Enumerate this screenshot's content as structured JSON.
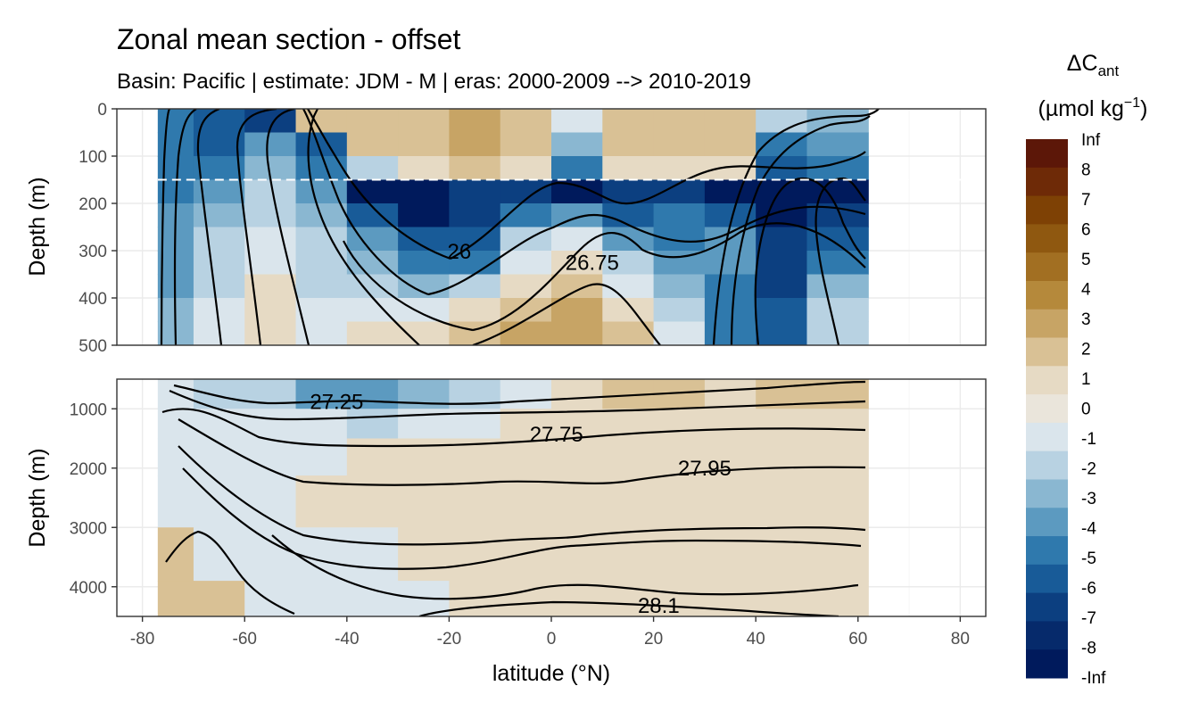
{
  "chart_data": {
    "type": "heatmap",
    "title": "Zonal mean section - offset",
    "subtitle": "Basin: Pacific | estimate: JDM - M | eras: 2000-2009 --> 2010-2019",
    "xlabel": "latitude (°N)",
    "ylabel_top": "Depth (m)",
    "ylabel_bottom": "Depth (m)",
    "xlim": [
      -85,
      85
    ],
    "x_ticks": [
      -80,
      -60,
      -40,
      -20,
      0,
      20,
      40,
      60,
      80
    ],
    "x_tick_labels": [
      "-80",
      "-60",
      "-40",
      "-20",
      "0",
      "20",
      "40",
      "60",
      "80"
    ],
    "panels": [
      {
        "name": "upper",
        "ylim": [
          0,
          500
        ],
        "y_ticks": [
          0,
          100,
          200,
          300,
          400,
          500
        ],
        "y_tick_labels": [
          "0",
          "100",
          "200",
          "300",
          "400",
          "500"
        ],
        "mixed_layer_line_depth": 150
      },
      {
        "name": "lower",
        "ylim": [
          500,
          4500
        ],
        "y_ticks": [
          1000,
          2000,
          3000,
          4000
        ],
        "y_tick_labels": [
          "1000",
          "2000",
          "3000",
          "4000"
        ]
      }
    ],
    "data_extent_lat": [
      -77,
      62
    ],
    "legend": {
      "title_main": "ΔC",
      "title_sub": "ant",
      "unit_prefix": "(µmol kg",
      "unit_exp": "−1",
      "unit_suffix": ")",
      "placement": "right",
      "labels": [
        "Inf",
        "8",
        "7",
        "6",
        "5",
        "4",
        "3",
        "2",
        "1",
        "0",
        "-1",
        "-2",
        "-3",
        "-4",
        "-5",
        "-6",
        "-7",
        "-8",
        "-Inf"
      ],
      "colors": [
        "#5c1708",
        "#6e2a07",
        "#7e4105",
        "#8f5810",
        "#a26f22",
        "#b5893b",
        "#c7a465",
        "#d9c195",
        "#e6dac4",
        "#eae5db",
        "#dae5ec",
        "#b8d2e2",
        "#8ab7d1",
        "#5c9ac0",
        "#2f79ad",
        "#185b98",
        "#0c3f80",
        "#062a6b",
        "#001a5c"
      ]
    },
    "isopycnal_labels": [
      {
        "text": "26",
        "lat": -18,
        "depth": 302
      },
      {
        "text": "26.75",
        "lat": 8,
        "depth": 325
      },
      {
        "text": "27.25",
        "lat": -42,
        "depth": 880
      },
      {
        "text": "27.75",
        "lat": 1,
        "depth": 1430
      },
      {
        "text": "27.95",
        "lat": 30,
        "depth": 2000
      },
      {
        "text": "28.1",
        "lat": 21,
        "depth": 4320
      }
    ],
    "field_samples_upper": {
      "depths": [
        25,
        75,
        125,
        175,
        225,
        275,
        325,
        375,
        425,
        475
      ],
      "lat": [
        -75,
        -65,
        -55,
        -45,
        -35,
        -25,
        -15,
        -5,
        5,
        15,
        25,
        35,
        45,
        55
      ],
      "values": [
        [
          -5,
          -6,
          -7,
          1,
          1,
          1,
          2,
          1,
          -1,
          1,
          1,
          1,
          -2,
          -3
        ],
        [
          -5,
          -6,
          -4,
          -6,
          1,
          1,
          2,
          1,
          -3,
          1,
          1,
          1,
          -5,
          -4
        ],
        [
          -5,
          -5,
          -3,
          -5,
          -2,
          0,
          1,
          0,
          -5,
          0,
          0,
          0,
          -6,
          -5
        ],
        [
          -5,
          -4,
          -2,
          -4,
          -8,
          -8,
          -7,
          -7,
          -8,
          -7,
          -7,
          -8,
          -8,
          -8
        ],
        [
          -4,
          -3,
          -2,
          -3,
          -6,
          -8,
          -7,
          -5,
          -4,
          -6,
          -5,
          -6,
          -8,
          -7
        ],
        [
          -4,
          -2,
          -1,
          -2,
          -4,
          -6,
          -6,
          -2,
          -1,
          -4,
          -5,
          -4,
          -7,
          -6
        ],
        [
          -4,
          -2,
          -1,
          -2,
          -3,
          -5,
          -5,
          -1,
          0,
          -2,
          -4,
          -4,
          -7,
          -5
        ],
        [
          -4,
          -2,
          0,
          -2,
          -2,
          -3,
          -2,
          0,
          1,
          -1,
          -3,
          -5,
          -7,
          -3
        ],
        [
          -3,
          -1,
          0,
          -1,
          -1,
          -1,
          0,
          1,
          2,
          0,
          -2,
          -5,
          -6,
          -2
        ],
        [
          -3,
          -1,
          0,
          -1,
          0,
          0,
          1,
          2,
          2,
          1,
          -1,
          -5,
          -6,
          -2
        ]
      ]
    },
    "field_samples_lower": {
      "depths": [
        750,
        1250,
        1750,
        2500,
        3500,
        4300
      ],
      "lat": [
        -75,
        -65,
        -55,
        -45,
        -35,
        -25,
        -15,
        -5,
        5,
        15,
        25,
        35,
        45,
        55
      ],
      "values": [
        [
          -1,
          -2,
          -2,
          -4,
          -4,
          -3,
          -2,
          -1,
          0,
          1,
          1,
          0,
          1,
          1
        ],
        [
          -1,
          -1,
          -1,
          -1,
          -2,
          -1,
          -1,
          0,
          0,
          0,
          0,
          0,
          0,
          0
        ],
        [
          -1,
          -1,
          -1,
          -1,
          0,
          0,
          0,
          0,
          0,
          0,
          0,
          0,
          0,
          0
        ],
        [
          -1,
          -1,
          -1,
          0,
          0,
          0,
          0,
          0,
          0,
          0,
          0,
          0,
          0,
          0
        ],
        [
          1,
          -1,
          -1,
          -1,
          -1,
          0,
          0,
          0,
          0,
          0,
          0,
          0,
          0,
          0
        ],
        [
          1,
          1,
          -1,
          -1,
          -1,
          -1,
          0,
          0,
          0,
          0,
          0,
          0,
          0,
          0
        ]
      ]
    }
  }
}
